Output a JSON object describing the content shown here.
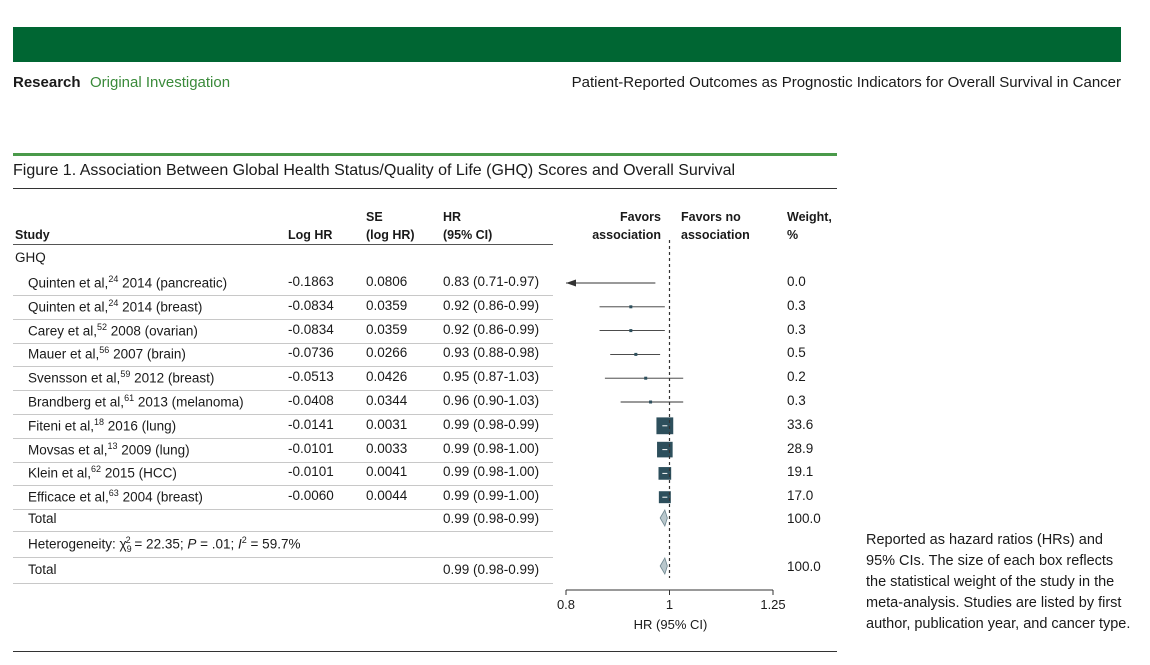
{
  "header": {
    "section": "Research",
    "subsection": "Original Investigation",
    "article_title": "Patient-Reported Outcomes as Prognostic Indicators for Overall Survival in Cancer"
  },
  "figure": {
    "title": "Figure 1. Association Between Global Health Status/Quality of Life (GHQ) Scores and Overall Survival",
    "caption": "Reported as hazard ratios (HRs) and 95% CIs. The size of each box reflects the statistical weight of the study in the meta-analysis. Studies are listed by first author, publication year, and cancer type.",
    "columns": {
      "study": "Study",
      "loghr": "Log HR",
      "se_1": "SE",
      "se_2": "(log HR)",
      "hr_1": "HR",
      "hr_2": "(95% CI)",
      "favors_1a": "Favors",
      "favors_1b": "association",
      "favors_2a": "Favors no",
      "favors_2b": "association",
      "weight_1": "Weight,",
      "weight_2": "%"
    },
    "group_label": "GHQ",
    "total_label": "Total",
    "total_hr": "0.99 (0.98-0.99)",
    "total_weight": "100.0",
    "heterogeneity": {
      "prefix": "Heterogeneity: χ",
      "sub": "9",
      "sup": "2",
      "mid": " = 22.35; ",
      "p_label": "P",
      "p_value": " = .01; ",
      "i_label": "I",
      "i_sup": "2",
      "i_value": " = 59.7%"
    },
    "overall_label": "Total",
    "overall_hr": "0.99 (0.98-0.99)",
    "overall_weight": "100.0"
  },
  "chart_data": {
    "type": "forest",
    "xlabel": "HR (95% CI)",
    "xlim": [
      0.8,
      1.25
    ],
    "xticks": [
      "0.8",
      "1",
      "1.25"
    ],
    "null_line": 1,
    "studies": [
      {
        "name": "Quinten et al,",
        "ref": "24",
        "rest": " 2014 (pancreatic)",
        "loghr": "-0.1863",
        "se": "0.0806",
        "hr_text": "0.83 (0.71-0.97)",
        "weight": "0.0",
        "hr": 0.83,
        "lo": 0.71,
        "hi": 0.97,
        "w": 0.0
      },
      {
        "name": "Quinten et al,",
        "ref": "24",
        "rest": " 2014 (breast)",
        "loghr": "-0.0834",
        "se": "0.0359",
        "hr_text": "0.92 (0.86-0.99)",
        "weight": "0.3",
        "hr": 0.92,
        "lo": 0.86,
        "hi": 0.99,
        "w": 0.3
      },
      {
        "name": "Carey et al,",
        "ref": "52",
        "rest": " 2008 (ovarian)",
        "loghr": "-0.0834",
        "se": "0.0359",
        "hr_text": "0.92 (0.86-0.99)",
        "weight": "0.3",
        "hr": 0.92,
        "lo": 0.86,
        "hi": 0.99,
        "w": 0.3
      },
      {
        "name": "Mauer et al,",
        "ref": "56",
        "rest": " 2007 (brain)",
        "loghr": "-0.0736",
        "se": "0.0266",
        "hr_text": "0.93 (0.88-0.98)",
        "weight": "0.5",
        "hr": 0.93,
        "lo": 0.88,
        "hi": 0.98,
        "w": 0.5
      },
      {
        "name": "Svensson et al,",
        "ref": "59",
        "rest": " 2012 (breast)",
        "loghr": "-0.0513",
        "se": "0.0426",
        "hr_text": "0.95 (0.87-1.03)",
        "weight": "0.2",
        "hr": 0.95,
        "lo": 0.87,
        "hi": 1.03,
        "w": 0.2
      },
      {
        "name": "Brandberg et al,",
        "ref": "61",
        "rest": " 2013 (melanoma)",
        "loghr": "-0.0408",
        "se": "0.0344",
        "hr_text": "0.96 (0.90-1.03)",
        "weight": "0.3",
        "hr": 0.96,
        "lo": 0.9,
        "hi": 1.03,
        "w": 0.3
      },
      {
        "name": "Fiteni et al,",
        "ref": "18",
        "rest": " 2016 (lung)",
        "loghr": "-0.0141",
        "se": "0.0031",
        "hr_text": "0.99 (0.98-0.99)",
        "weight": "33.6",
        "hr": 0.99,
        "lo": 0.98,
        "hi": 0.99,
        "w": 33.6
      },
      {
        "name": "Movsas et al,",
        "ref": "13",
        "rest": " 2009 (lung)",
        "loghr": "-0.0101",
        "se": "0.0033",
        "hr_text": "0.99 (0.98-1.00)",
        "weight": "28.9",
        "hr": 0.99,
        "lo": 0.98,
        "hi": 1.0,
        "w": 28.9
      },
      {
        "name": "Klein et al,",
        "ref": "62",
        "rest": " 2015 (HCC)",
        "loghr": "-0.0101",
        "se": "0.0041",
        "hr_text": "0.99 (0.98-1.00)",
        "weight": "19.1",
        "hr": 0.99,
        "lo": 0.98,
        "hi": 1.0,
        "w": 19.1
      },
      {
        "name": "Efficace et al,",
        "ref": "63",
        "rest": " 2004 (breast)",
        "loghr": "-0.0060",
        "se": "0.0044",
        "hr_text": "0.99 (0.99-1.00)",
        "weight": "17.0",
        "hr": 0.99,
        "lo": 0.99,
        "hi": 1.0,
        "w": 17.0
      }
    ],
    "pooled": [
      {
        "hr": 0.99,
        "lo": 0.98,
        "hi": 0.99
      },
      {
        "hr": 0.99,
        "lo": 0.98,
        "hi": 0.99
      }
    ],
    "colors": {
      "marker": "#2d4f5c",
      "line": "#333333",
      "diamond": "#b9c7cc"
    }
  }
}
